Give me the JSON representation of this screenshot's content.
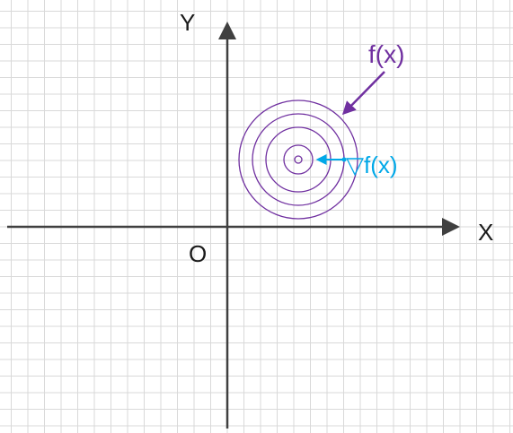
{
  "labels": {
    "y_axis": "Y",
    "x_axis": "X",
    "origin": "O",
    "function": "f(x)",
    "gradient": "▽f(x)"
  },
  "colors": {
    "grid": "#d9d9d9",
    "axes": "#404040",
    "contours": "#7030a0",
    "gradient": "#00a8e8",
    "text": "#1a1a1a"
  },
  "contour_count": 5
}
